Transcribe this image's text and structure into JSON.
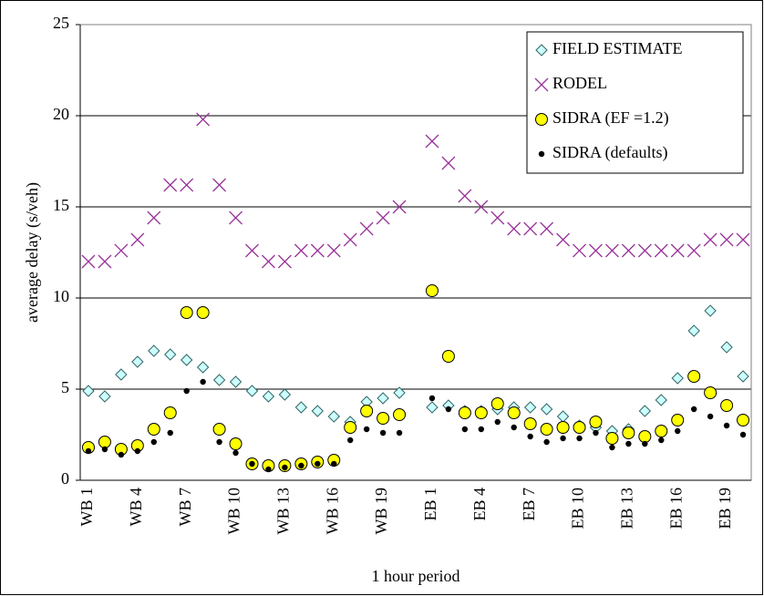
{
  "chart_data": {
    "type": "scatter",
    "y_label": "average delay (s/veh)",
    "x_label": "1 hour period",
    "categories": [
      "WB 1",
      null,
      null,
      "WB 4",
      null,
      null,
      "WB 7",
      null,
      null,
      "WB 10",
      null,
      null,
      "WB 13",
      null,
      null,
      "WB 16",
      null,
      null,
      "WB 19",
      null,
      null,
      "EB 1",
      null,
      null,
      "EB 4",
      null,
      null,
      "EB 7",
      null,
      null,
      "EB 10",
      null,
      null,
      "EB 13",
      null,
      null,
      "EB 16",
      null,
      null,
      "EB 19",
      null
    ],
    "ylim": [
      0,
      25
    ],
    "yticks": [
      0,
      5,
      10,
      15,
      20,
      25
    ],
    "grid": true,
    "legend": "upper right",
    "series": [
      {
        "name": "FIELD ESTIMATE",
        "marker": "diamond",
        "color": "#ccffff",
        "values": [
          4.9,
          4.6,
          5.8,
          6.5,
          7.1,
          6.9,
          6.6,
          6.2,
          5.5,
          5.4,
          4.9,
          4.6,
          4.7,
          4.0,
          3.8,
          3.5,
          3.2,
          4.3,
          4.5,
          4.8,
          null,
          4.0,
          4.1,
          3.8,
          3.8,
          3.9,
          4.0,
          4.0,
          3.9,
          3.5,
          3.0,
          2.9,
          2.7,
          2.8,
          3.8,
          4.4,
          5.6,
          8.2,
          9.3,
          7.3,
          5.7
        ]
      },
      {
        "name": "RODEL",
        "marker": "cross",
        "color": "#993399",
        "values": [
          12.0,
          12.0,
          12.6,
          13.2,
          14.4,
          16.2,
          16.2,
          19.8,
          16.2,
          14.4,
          12.6,
          12.0,
          12.0,
          12.6,
          12.6,
          12.6,
          13.2,
          13.8,
          14.4,
          15.0,
          null,
          18.6,
          17.4,
          15.6,
          15.0,
          14.4,
          13.8,
          13.8,
          13.8,
          13.2,
          12.6,
          12.6,
          12.6,
          12.6,
          12.6,
          12.6,
          12.6,
          12.6,
          13.2,
          13.2,
          13.2
        ]
      },
      {
        "name": "SIDRA (EF =1.2)",
        "marker": "circle",
        "color": "#ffff00",
        "values": [
          1.8,
          2.1,
          1.7,
          1.9,
          2.8,
          3.7,
          9.2,
          9.2,
          2.8,
          2.0,
          0.9,
          0.8,
          0.8,
          0.9,
          1.0,
          1.1,
          2.9,
          3.8,
          3.4,
          3.6,
          null,
          10.4,
          6.8,
          3.7,
          3.7,
          4.2,
          3.7,
          3.1,
          2.8,
          2.9,
          2.9,
          3.2,
          2.3,
          2.6,
          2.4,
          2.7,
          3.3,
          5.7,
          4.8,
          4.1,
          3.3
        ]
      },
      {
        "name": "SIDRA (defaults)",
        "marker": "dot",
        "color": "#000000",
        "values": [
          1.6,
          1.7,
          1.4,
          1.6,
          2.1,
          2.6,
          4.9,
          5.4,
          2.1,
          1.5,
          0.9,
          0.6,
          0.7,
          0.8,
          0.9,
          0.9,
          2.2,
          2.8,
          2.6,
          2.6,
          null,
          4.5,
          3.9,
          2.8,
          2.8,
          3.2,
          2.9,
          2.4,
          2.1,
          2.3,
          2.3,
          2.6,
          1.8,
          2.0,
          2.0,
          2.2,
          2.7,
          3.9,
          3.5,
          3.0,
          2.5
        ]
      }
    ]
  }
}
